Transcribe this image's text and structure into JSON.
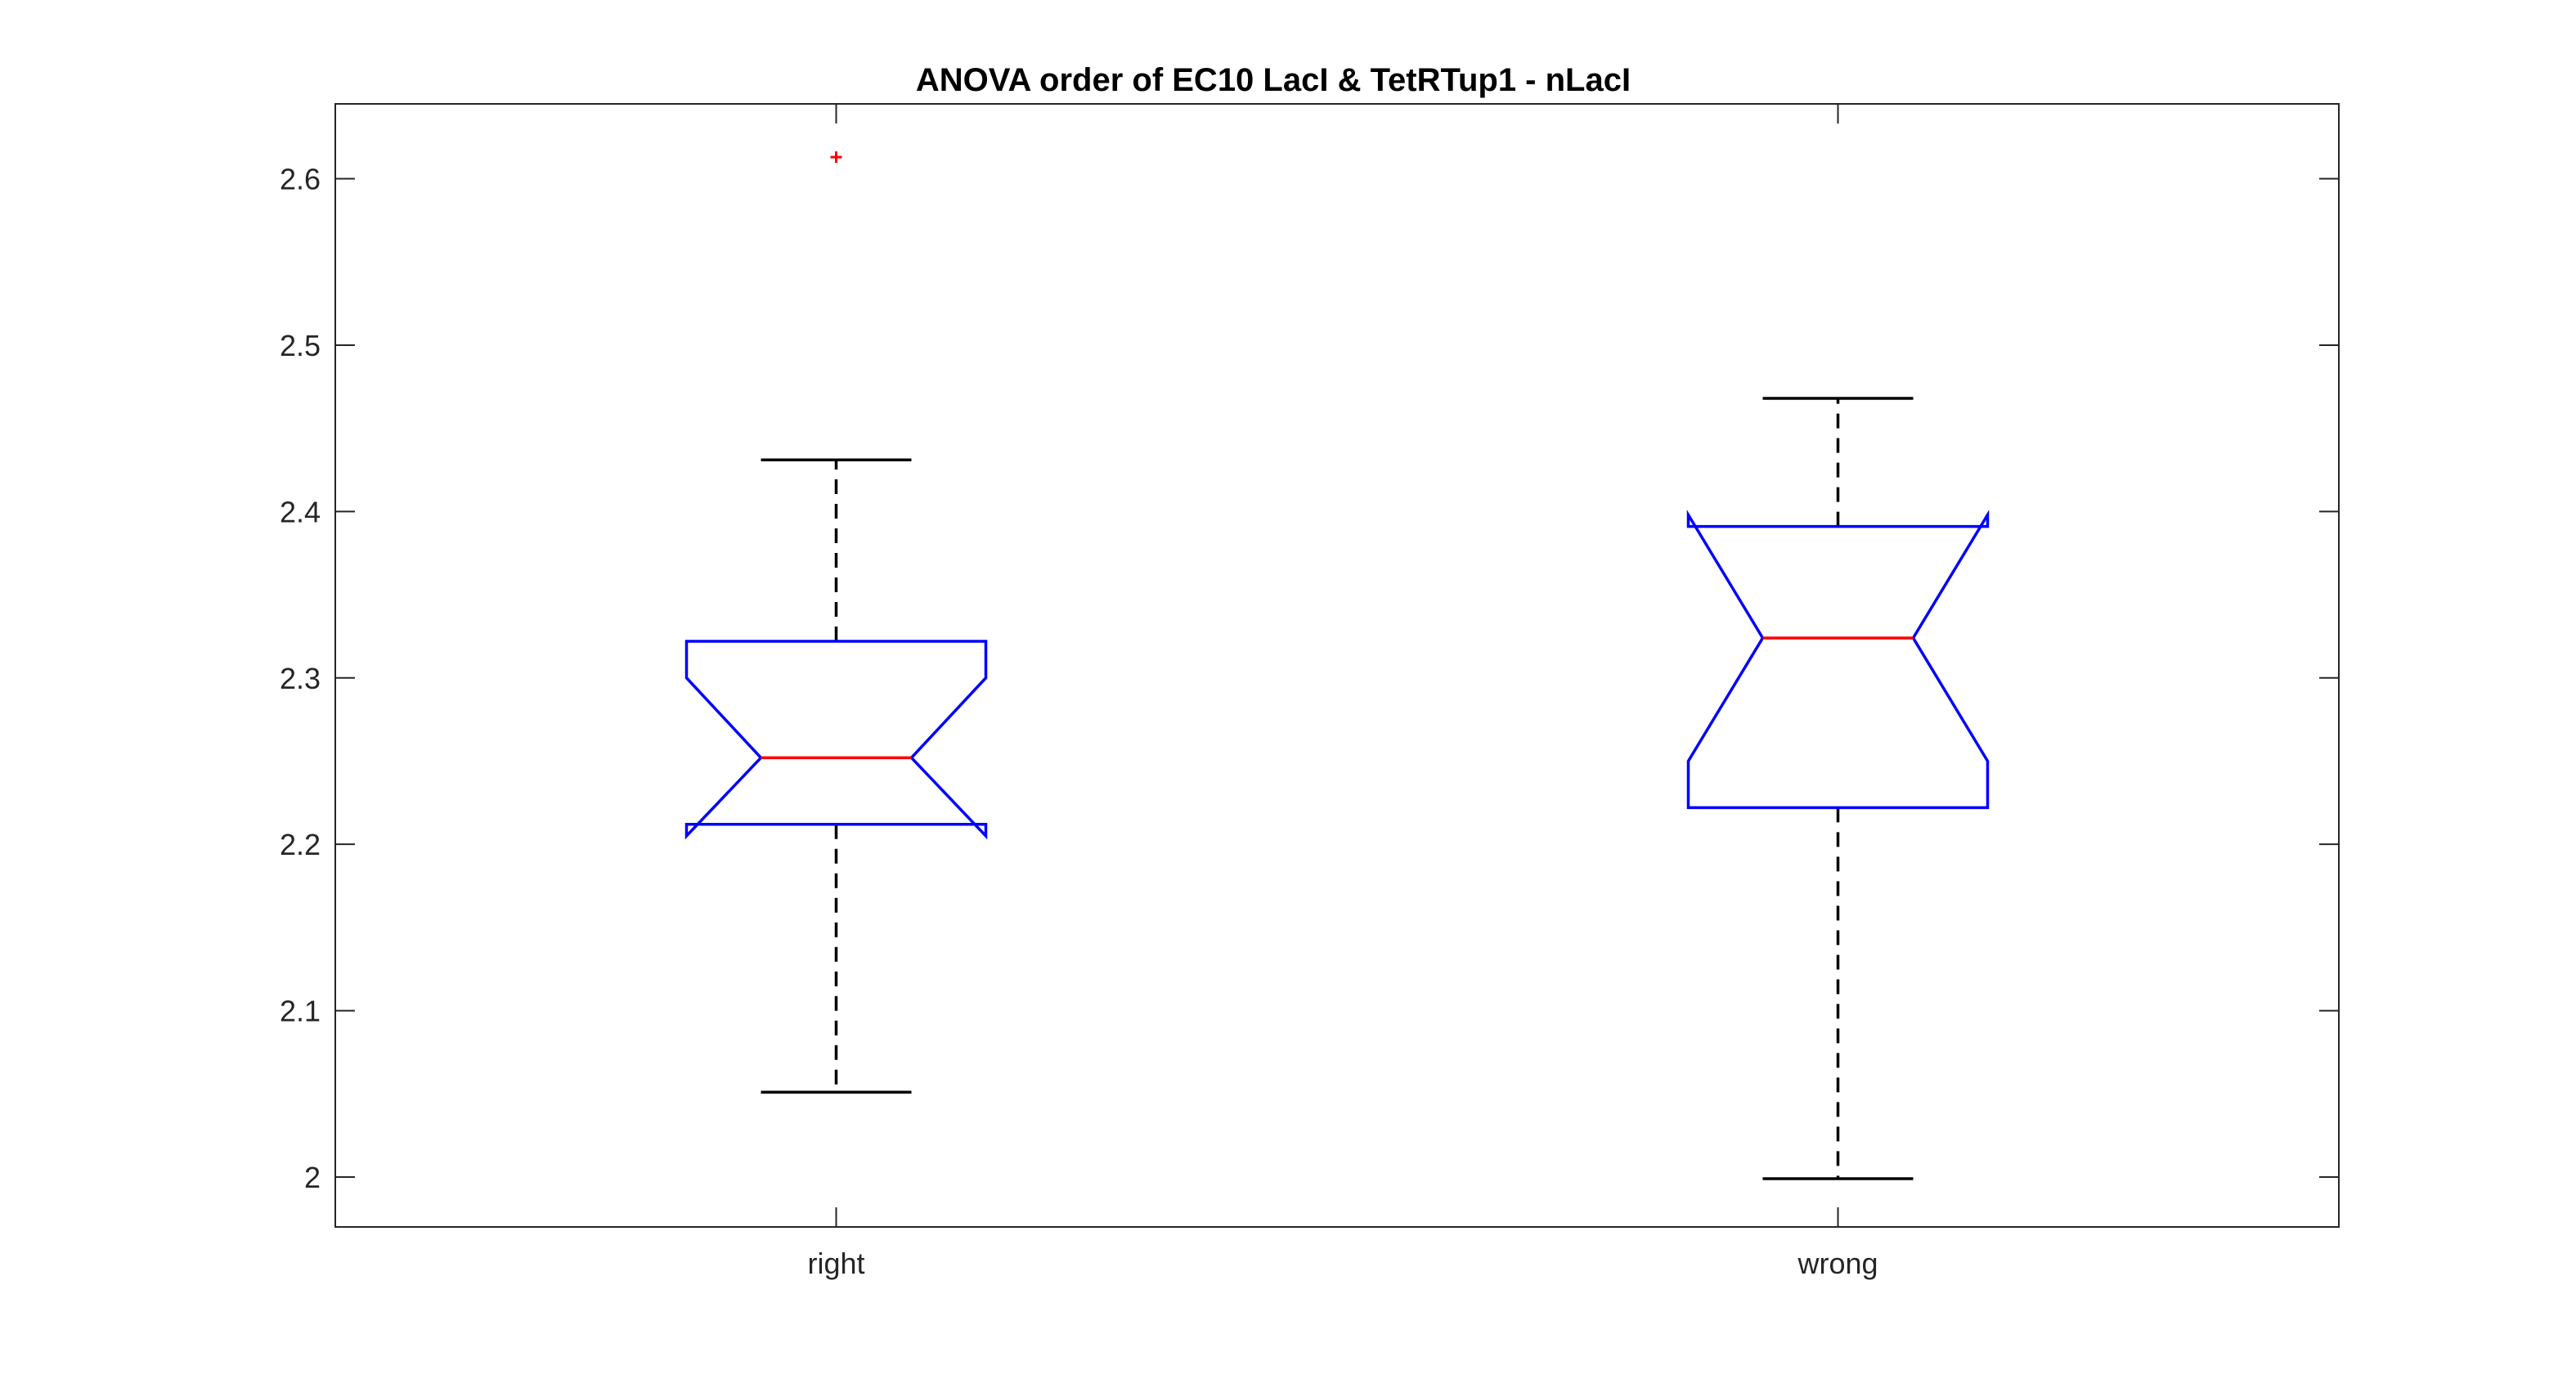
{
  "chart_data": {
    "type": "boxplot",
    "title": "ANOVA order of EC10 LacI & TetRTup1 - nLacI",
    "xlabel": "",
    "ylabel": "",
    "categories": [
      "right",
      "wrong"
    ],
    "ylim": [
      1.97,
      2.645
    ],
    "yticks": [
      2,
      2.1,
      2.2,
      2.3,
      2.4,
      2.5,
      2.6
    ],
    "ytick_labels": [
      "2",
      "2.1",
      "2.2",
      "2.3",
      "2.4",
      "2.5",
      "2.6"
    ],
    "notched": true,
    "grid": false,
    "boxes": [
      {
        "category": "right",
        "whisker_low": 2.051,
        "q1": 2.212,
        "median": 2.252,
        "q3": 2.322,
        "whisker_high": 2.431,
        "notch_low": 2.205,
        "notch_high": 2.3,
        "outliers": [
          2.613
        ]
      },
      {
        "category": "wrong",
        "whisker_low": 1.999,
        "q1": 2.222,
        "median": 2.324,
        "q3": 2.391,
        "whisker_high": 2.468,
        "notch_low": 2.25,
        "notch_high": 2.398,
        "outliers": []
      }
    ],
    "colors": {
      "box": "#0000ff",
      "median": "#ff0000",
      "whisker": "#000000",
      "outlier": "#ff0000",
      "axis": "#262626"
    }
  }
}
